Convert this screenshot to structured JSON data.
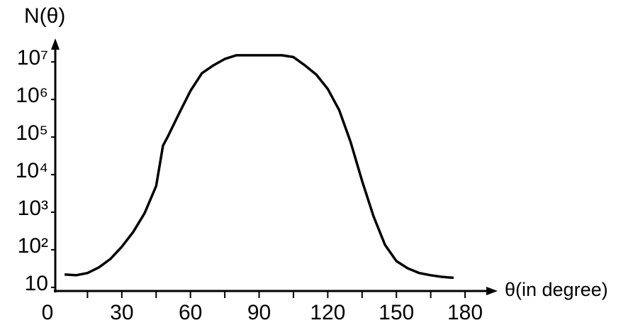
{
  "chart_data": {
    "type": "line",
    "y_label": "N(θ)",
    "x_label": "θ(in degree)",
    "log_y": true,
    "x": [
      5,
      10,
      15,
      20,
      25,
      30,
      35,
      40,
      45,
      48,
      50,
      55,
      60,
      65,
      70,
      75,
      80,
      90,
      100,
      105,
      110,
      115,
      120,
      125,
      130,
      135,
      140,
      145,
      150,
      155,
      160,
      165,
      170,
      175
    ],
    "series": [
      {
        "color": "#000000",
        "values": [
          22,
          21,
          24,
          34,
          57,
          120,
          300,
          950,
          5000,
          59000,
          100000,
          420000,
          1700000,
          5000000,
          8100000,
          12000000,
          15000000,
          15000000,
          15000000,
          13500000,
          8100000,
          4600000,
          1900000,
          520000,
          74000,
          6800,
          780,
          135,
          50,
          32,
          24,
          21,
          19,
          18
        ]
      }
    ],
    "xlim": [
      0,
      193
    ],
    "ylim": [
      8,
      30000000
    ],
    "xticks": [
      0,
      30,
      60,
      90,
      120,
      150,
      180
    ],
    "xminorticks": [
      15,
      45,
      75,
      105,
      135,
      165
    ],
    "yticks": [
      10,
      {
        "value": 100,
        "label": "10²"
      },
      {
        "value": 1000,
        "label": "10³"
      },
      {
        "value": 10000,
        "label": "10⁴"
      },
      {
        "value": 100000,
        "label": "10⁵"
      },
      {
        "value": 1000000,
        "label": "10⁶"
      },
      {
        "value": 10000000,
        "label": "10⁷"
      }
    ],
    "grid": false
  }
}
